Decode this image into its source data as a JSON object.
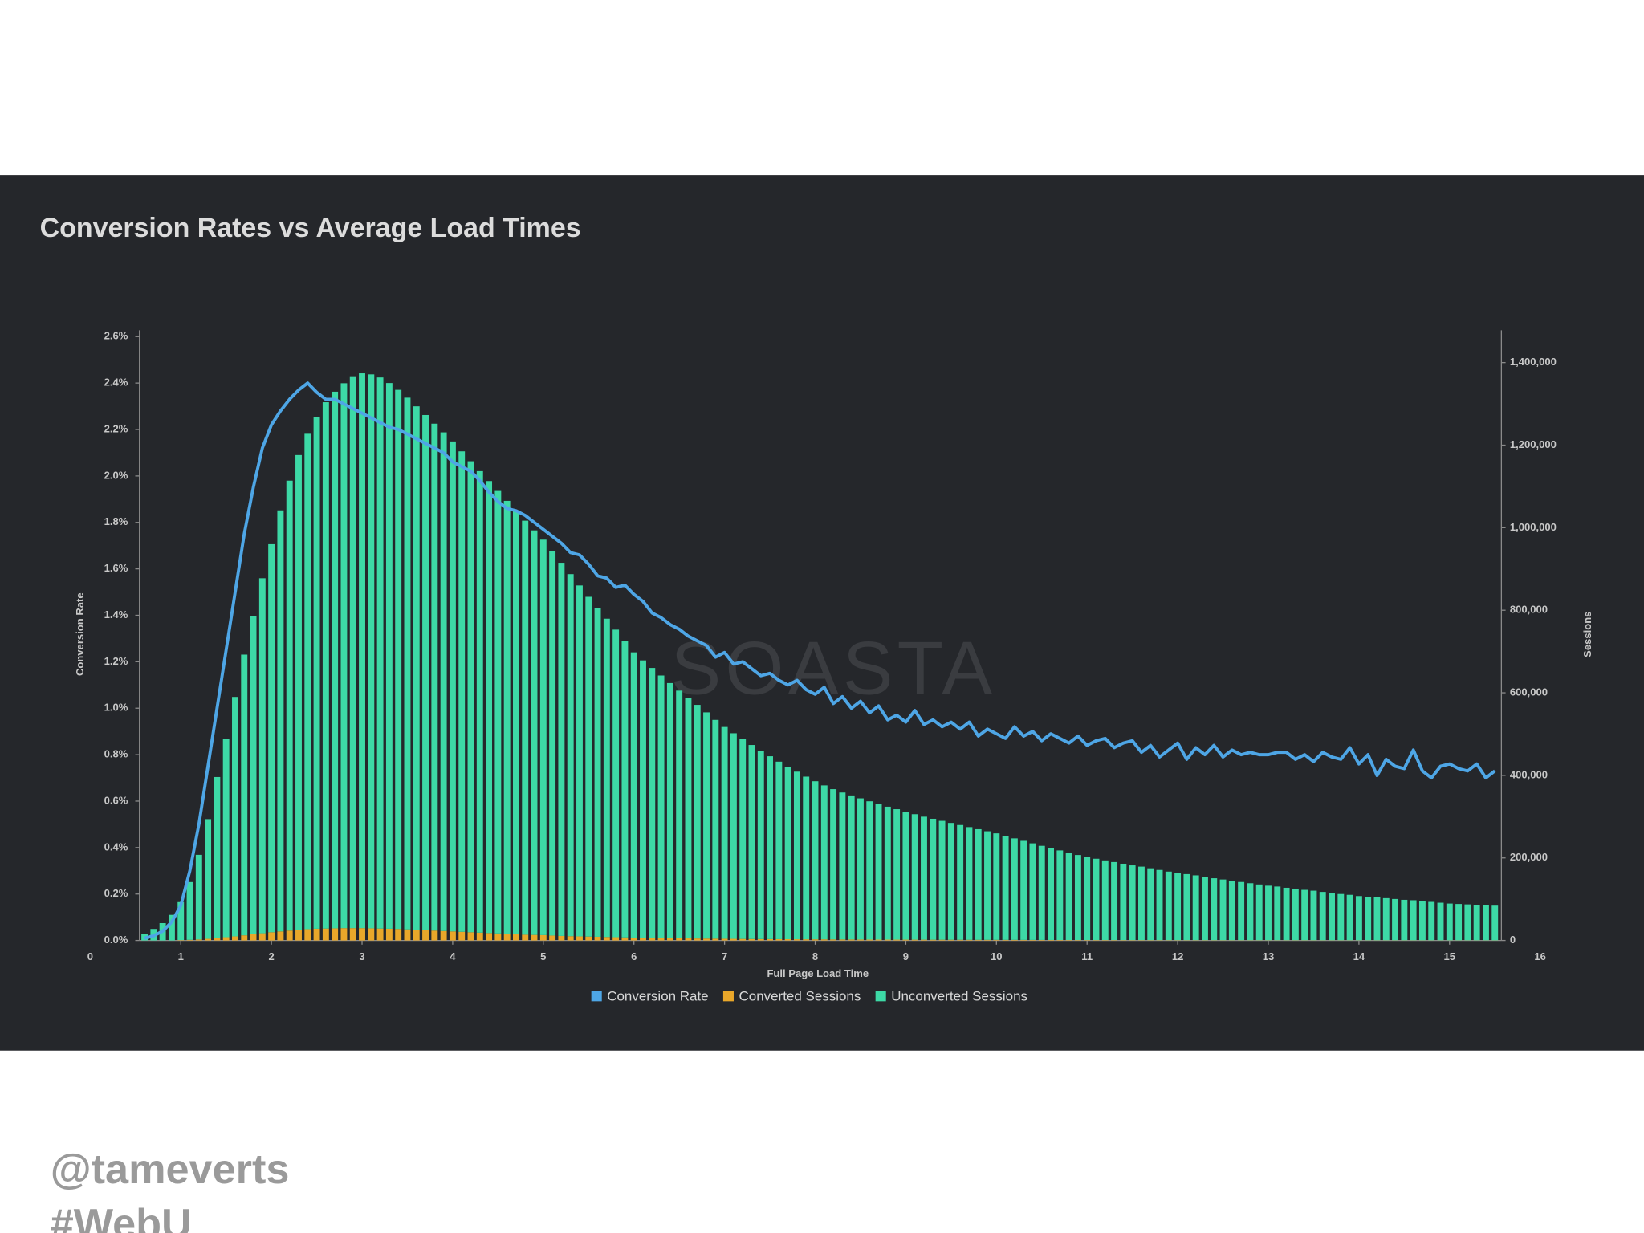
{
  "chart_data": {
    "type": "combo",
    "title": "Conversion Rates vs Average Load Times",
    "xlabel": "Full Page Load Time",
    "ylabel": "Conversion Rate",
    "y2label": "Sessions",
    "watermark": "SOASTA",
    "xlim": [
      0,
      16
    ],
    "xticks": [
      0,
      1,
      2,
      3,
      4,
      5,
      6,
      7,
      8,
      9,
      10,
      11,
      12,
      13,
      14,
      15,
      16
    ],
    "ylim": [
      0,
      2.6
    ],
    "yticks": [
      {
        "value": 0,
        "label": "0.0%"
      },
      {
        "value": 0.2,
        "label": "0.2%"
      },
      {
        "value": 0.4,
        "label": "0.4%"
      },
      {
        "value": 0.6,
        "label": "0.6%"
      },
      {
        "value": 0.8,
        "label": "0.8%"
      },
      {
        "value": 1.0,
        "label": "1.0%"
      },
      {
        "value": 1.2,
        "label": "1.2%"
      },
      {
        "value": 1.4,
        "label": "1.4%"
      },
      {
        "value": 1.6,
        "label": "1.6%"
      },
      {
        "value": 1.8,
        "label": "1.8%"
      },
      {
        "value": 2.0,
        "label": "2.0%"
      },
      {
        "value": 2.2,
        "label": "2.2%"
      },
      {
        "value": 2.4,
        "label": "2.4%"
      },
      {
        "value": 2.6,
        "label": "2.6%"
      }
    ],
    "y2lim": [
      0,
      1463000
    ],
    "y2ticks": [
      0,
      {
        "value": 200000,
        "label": "200,000"
      },
      {
        "value": 400000,
        "label": "400,000"
      },
      {
        "value": 600000,
        "label": "600,000"
      },
      {
        "value": 800000,
        "label": "800,000"
      },
      {
        "value": 1000000,
        "label": "1,000,000"
      },
      {
        "value": 1200000,
        "label": "1,200,000"
      },
      {
        "value": 1400000,
        "label": "1,400,000"
      }
    ],
    "x": [
      0.6,
      0.7,
      0.8,
      0.9,
      1.0,
      1.1,
      1.2,
      1.3,
      1.4,
      1.5,
      1.6,
      1.7,
      1.8,
      1.9,
      2.0,
      2.1,
      2.2,
      2.3,
      2.4,
      2.5,
      2.6,
      2.7,
      2.8,
      2.9,
      3.0,
      3.1,
      3.2,
      3.3,
      3.4,
      3.5,
      3.6,
      3.7,
      3.8,
      3.9,
      4.0,
      4.1,
      4.2,
      4.3,
      4.4,
      4.5,
      4.6,
      4.7,
      4.8,
      4.9,
      5.0,
      5.1,
      5.2,
      5.3,
      5.4,
      5.5,
      5.6,
      5.7,
      5.8,
      5.9,
      6.0,
      6.1,
      6.2,
      6.3,
      6.4,
      6.5,
      6.6,
      6.7,
      6.8,
      6.9,
      7.0,
      7.1,
      7.2,
      7.3,
      7.4,
      7.5,
      7.6,
      7.7,
      7.8,
      7.9,
      8.0,
      8.1,
      8.2,
      8.3,
      8.4,
      8.5,
      8.6,
      8.7,
      8.8,
      8.9,
      9.0,
      9.1,
      9.2,
      9.3,
      9.4,
      9.5,
      9.6,
      9.7,
      9.8,
      9.9,
      10.0,
      10.1,
      10.2,
      10.3,
      10.4,
      10.5,
      10.6,
      10.7,
      10.8,
      10.9,
      11.0,
      11.1,
      11.2,
      11.3,
      11.4,
      11.5,
      11.6,
      11.7,
      11.8,
      11.9,
      12.0,
      12.1,
      12.2,
      12.3,
      12.4,
      12.5,
      12.6,
      12.7,
      12.8,
      12.9,
      13.0,
      13.1,
      13.2,
      13.3,
      13.4,
      13.5,
      13.6,
      13.7,
      13.8,
      13.9,
      14.0,
      14.1,
      14.2,
      14.3,
      14.4,
      14.5,
      14.6,
      14.7,
      14.8,
      14.9,
      15.0,
      15.1,
      15.2,
      15.3,
      15.4,
      15.5
    ],
    "series": [
      {
        "name": "Conversion Rate",
        "type": "line",
        "color": "#4ea6e6",
        "values": [
          0.01,
          0.02,
          0.04,
          0.08,
          0.15,
          0.3,
          0.5,
          0.75,
          1.0,
          1.25,
          1.5,
          1.75,
          1.95,
          2.12,
          2.22,
          2.28,
          2.33,
          2.37,
          2.4,
          2.36,
          2.33,
          2.33,
          2.31,
          2.29,
          2.27,
          2.25,
          2.23,
          2.21,
          2.2,
          2.18,
          2.16,
          2.14,
          2.12,
          2.1,
          2.06,
          2.04,
          2.02,
          1.98,
          1.93,
          1.89,
          1.86,
          1.85,
          1.83,
          1.8,
          1.77,
          1.74,
          1.71,
          1.67,
          1.66,
          1.62,
          1.57,
          1.56,
          1.52,
          1.53,
          1.49,
          1.46,
          1.41,
          1.39,
          1.36,
          1.34,
          1.31,
          1.29,
          1.27,
          1.22,
          1.24,
          1.19,
          1.2,
          1.17,
          1.14,
          1.15,
          1.12,
          1.1,
          1.12,
          1.08,
          1.06,
          1.09,
          1.02,
          1.05,
          1.0,
          1.03,
          0.98,
          1.01,
          0.95,
          0.97,
          0.94,
          0.99,
          0.93,
          0.95,
          0.92,
          0.94,
          0.91,
          0.94,
          0.88,
          0.91,
          0.89,
          0.87,
          0.92,
          0.88,
          0.9,
          0.86,
          0.89,
          0.87,
          0.85,
          0.88,
          0.84,
          0.86,
          0.87,
          0.83,
          0.85,
          0.86,
          0.81,
          0.84,
          0.79,
          0.82,
          0.85,
          0.78,
          0.83,
          0.8,
          0.84,
          0.79,
          0.82,
          0.8,
          0.81,
          0.8,
          0.8,
          0.81,
          0.81,
          0.78,
          0.8,
          0.77,
          0.81,
          0.79,
          0.78,
          0.83,
          0.76,
          0.8,
          0.71,
          0.78,
          0.75,
          0.74,
          0.82,
          0.73,
          0.7,
          0.75,
          0.76,
          0.74,
          0.73,
          0.76,
          0.7,
          0.73
        ]
      },
      {
        "name": "Converted Sessions",
        "type": "bar",
        "axis": "y2",
        "color": "#e9a72a",
        "values": [
          0,
          0,
          0,
          0,
          1000,
          1500,
          2500,
          4000,
          6000,
          8000,
          10000,
          12500,
          15000,
          17500,
          20000,
          22000,
          24000,
          26000,
          27500,
          28500,
          29000,
          29500,
          30000,
          30000,
          30000,
          29500,
          29000,
          28500,
          28000,
          27000,
          26000,
          25000,
          24000,
          23000,
          22000,
          21000,
          20000,
          19000,
          18000,
          17000,
          16000,
          15000,
          14000,
          13500,
          13000,
          12000,
          11000,
          10500,
          10000,
          9500,
          9000,
          8500,
          8000,
          7500,
          7000,
          6500,
          6200,
          5900,
          5600,
          5300,
          5000,
          4800,
          4600,
          4400,
          4200,
          4000,
          3800,
          3600,
          3400,
          3300,
          3200,
          3100,
          3000,
          2900,
          2800,
          2700,
          2600,
          2500,
          2400,
          2300,
          2200,
          2150,
          2100,
          2050,
          2000,
          1950,
          1900,
          1850,
          1800,
          1750,
          1700,
          1650,
          1600,
          1550,
          1500,
          1450,
          1400,
          1350,
          1300,
          1250,
          1200,
          1150,
          1100,
          1080,
          1050,
          1020,
          1000,
          980,
          950,
          920,
          900,
          880,
          860,
          840,
          820,
          800,
          780,
          760,
          740,
          720,
          700,
          690,
          680,
          670,
          660,
          650,
          640,
          630,
          620,
          610,
          600,
          590,
          580,
          570,
          560,
          550,
          540,
          530,
          520,
          510,
          500,
          490,
          480,
          470,
          460,
          450,
          440,
          430,
          420,
          410
        ]
      },
      {
        "name": "Unconverted Sessions",
        "type": "bar",
        "axis": "y2",
        "color": "#3dd9a6",
        "values": [
          15000,
          28000,
          42000,
          62000,
          92000,
          140000,
          205000,
          290000,
          390000,
          480000,
          580000,
          680000,
          770000,
          860000,
          940000,
          1020000,
          1090000,
          1150000,
          1200000,
          1240000,
          1275000,
          1300000,
          1320000,
          1335000,
          1344000,
          1342000,
          1335000,
          1322000,
          1306000,
          1288000,
          1268000,
          1248000,
          1228000,
          1208000,
          1187000,
          1164000,
          1141000,
          1118000,
          1095000,
          1072000,
          1049000,
          1026000,
          1003000,
          980000,
          958000,
          931000,
          904000,
          877000,
          850000,
          823000,
          797000,
          771000,
          745000,
          718000,
          691000,
          672000,
          654000,
          636000,
          618000,
          600000,
          583000,
          566000,
          548000,
          530000,
          513000,
          498000,
          484000,
          470000,
          456000,
          443000,
          430000,
          418000,
          406000,
          394000,
          383000,
          373000,
          364000,
          356000,
          349000,
          342000,
          335000,
          329000,
          322000,
          316000,
          310000,
          304000,
          298000,
          293000,
          288000,
          283000,
          278000,
          273000,
          268000,
          263000,
          258000,
          252000,
          246000,
          240000,
          234000,
          228000,
          223000,
          217000,
          212000,
          206000,
          201000,
          197000,
          193000,
          189000,
          185000,
          181000,
          178000,
          174000,
          170000,
          166000,
          163000,
          160000,
          157000,
          154000,
          150000,
          147000,
          144000,
          141000,
          138000,
          135000,
          132000,
          130000,
          127000,
          125000,
          122000,
          120000,
          117000,
          115000,
          112000,
          110000,
          107000,
          105000,
          104000,
          102000,
          100000,
          98000,
          97000,
          95000,
          93000,
          91000,
          89000,
          88000,
          87000,
          86000,
          85000,
          84000
        ]
      }
    ]
  },
  "footer": [
    "@tameverts",
    "#WebU"
  ]
}
